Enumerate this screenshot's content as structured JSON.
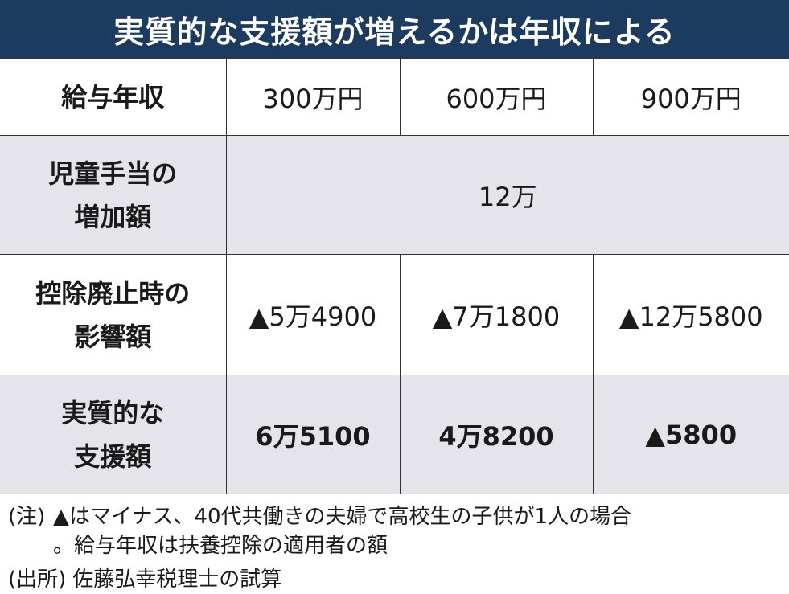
{
  "title": "実質的な支援額が増えるかは年収による",
  "table": {
    "header": {
      "label": "給与年収",
      "values": [
        "300万円",
        "600万円",
        "900万円"
      ]
    },
    "rows": [
      {
        "label": [
          "児童手当の",
          "増加額"
        ],
        "values": [
          "12万"
        ]
      },
      {
        "label": [
          "控除廃止時の",
          "影響額"
        ],
        "values": [
          "▲5万4900",
          "▲7万1800",
          "▲12万5800"
        ]
      },
      {
        "label": [
          "実質的な",
          "支援額"
        ],
        "values": [
          "6万5100",
          "4万8200",
          "▲5800"
        ]
      }
    ]
  },
  "notes": {
    "label": "(注)",
    "lines": [
      "▲はマイナス、40代共働きの夫婦で高校生の子供が1人の場合",
      "。給与年収は扶養控除の適用者の額"
    ]
  },
  "source": {
    "label": "(出所)",
    "text": "佐藤弘幸税理士の試算"
  }
}
